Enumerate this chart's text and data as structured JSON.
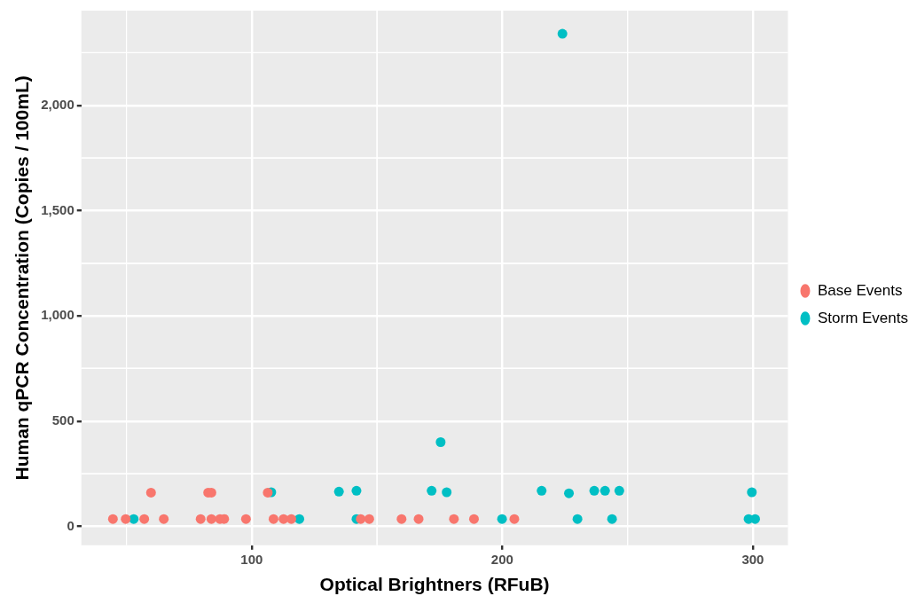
{
  "chart_data": {
    "type": "scatter",
    "xlabel": "Optical Brightners (RFuB)",
    "ylabel": "Human qPCR Concentration (Copies / 100mL)",
    "xlim": [
      32,
      314
    ],
    "ylim": [
      -90,
      2450
    ],
    "xticks": [
      100,
      200,
      300
    ],
    "yticks": [
      0,
      500,
      {
        "value": 1000,
        "label": "1,000"
      },
      {
        "value": 1500,
        "label": "1,500"
      },
      {
        "value": 2000,
        "label": "2,000"
      }
    ],
    "grid": true,
    "legend": "right",
    "marker": "circle",
    "series": [
      {
        "name": "Base Events",
        "color": "#f8766d",
        "x": [
          44.6,
          49.7,
          57.1,
          64.9,
          79.6,
          83.9,
          87.3,
          89.0,
          97.7,
          108.7,
          112.7,
          115.8,
          143.5,
          146.9,
          159.8,
          166.6,
          180.7,
          188.7,
          204.8,
          59.8,
          82.6,
          83.9,
          106.4
        ],
        "values": [
          35,
          35,
          35,
          35,
          35,
          35,
          35,
          35,
          35,
          35,
          35,
          35,
          35,
          35,
          35,
          35,
          35,
          35,
          35,
          160,
          160,
          160,
          160
        ]
      },
      {
        "name": "Storm Events",
        "color": "#00bfc4",
        "x": [
          52.9,
          119.0,
          141.8,
          199.9,
          230.0,
          243.8,
          298.3,
          300.9,
          107.8,
          134.8,
          141.8,
          171.8,
          177.8,
          215.7,
          226.6,
          236.7,
          241.0,
          246.7,
          299.6,
          175.4,
          224
        ],
        "values": [
          35,
          35,
          35,
          35,
          35,
          35,
          35,
          35,
          162,
          165,
          169,
          169,
          162,
          169,
          157,
          169,
          169,
          169,
          162,
          400,
          2340
        ]
      }
    ]
  }
}
